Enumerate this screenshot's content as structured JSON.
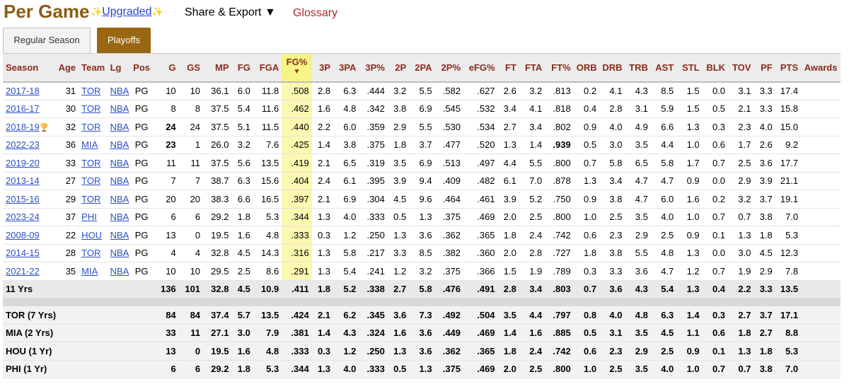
{
  "header": {
    "title": "Per Game",
    "upgraded_label": "Upgraded",
    "share_label": "Share & Export ▼",
    "glossary_label": "Glossary"
  },
  "tabs": [
    {
      "label": "Regular Season"
    },
    {
      "label": "Playoffs"
    }
  ],
  "columns": [
    "Season",
    "Age",
    "Team",
    "Lg",
    "Pos",
    "G",
    "GS",
    "MP",
    "FG",
    "FGA",
    "FG%",
    "3P",
    "3PA",
    "3P%",
    "2P",
    "2PA",
    "2P%",
    "eFG%",
    "FT",
    "FTA",
    "FT%",
    "ORB",
    "DRB",
    "TRB",
    "AST",
    "STL",
    "BLK",
    "TOV",
    "PF",
    "PTS",
    "Awards"
  ],
  "sort_indicator": "▼",
  "rows": [
    [
      "2017-18",
      "31",
      "TOR",
      "NBA",
      "PG",
      "10",
      "10",
      "36.1",
      "6.0",
      "11.8",
      ".508",
      "2.8",
      "6.3",
      ".444",
      "3.2",
      "5.5",
      ".582",
      ".627",
      "2.6",
      "3.2",
      ".813",
      "0.2",
      "4.1",
      "4.3",
      "8.5",
      "1.5",
      "0.0",
      "3.1",
      "3.3",
      "17.4",
      ""
    ],
    [
      "2016-17",
      "30",
      "TOR",
      "NBA",
      "PG",
      "8",
      "8",
      "37.5",
      "5.4",
      "11.6",
      ".462",
      "1.6",
      "4.8",
      ".342",
      "3.8",
      "6.9",
      ".545",
      ".532",
      "3.4",
      "4.1",
      ".818",
      "0.4",
      "2.8",
      "3.1",
      "5.9",
      "1.5",
      "0.5",
      "2.1",
      "3.3",
      "15.8",
      ""
    ],
    [
      "2018-19",
      "32",
      "TOR",
      "NBA",
      "PG",
      "24",
      "24",
      "37.5",
      "5.1",
      "11.5",
      ".440",
      "2.2",
      "6.0",
      ".359",
      "2.9",
      "5.5",
      ".530",
      ".534",
      "2.7",
      "3.4",
      ".802",
      "0.9",
      "4.0",
      "4.9",
      "6.6",
      "1.3",
      "0.3",
      "2.3",
      "4.0",
      "15.0",
      ""
    ],
    [
      "2022-23",
      "36",
      "MIA",
      "NBA",
      "PG",
      "23",
      "1",
      "26.0",
      "3.2",
      "7.6",
      ".425",
      "1.4",
      "3.8",
      ".375",
      "1.8",
      "3.7",
      ".477",
      ".520",
      "1.3",
      "1.4",
      ".939",
      "0.5",
      "3.0",
      "3.5",
      "4.4",
      "1.0",
      "0.6",
      "1.7",
      "2.6",
      "9.2",
      ""
    ],
    [
      "2019-20",
      "33",
      "TOR",
      "NBA",
      "PG",
      "11",
      "11",
      "37.5",
      "5.6",
      "13.5",
      ".419",
      "2.1",
      "6.5",
      ".319",
      "3.5",
      "6.9",
      ".513",
      ".497",
      "4.4",
      "5.5",
      ".800",
      "0.7",
      "5.8",
      "6.5",
      "5.8",
      "1.7",
      "0.7",
      "2.5",
      "3.6",
      "17.7",
      ""
    ],
    [
      "2013-14",
      "27",
      "TOR",
      "NBA",
      "PG",
      "7",
      "7",
      "38.7",
      "6.3",
      "15.6",
      ".404",
      "2.4",
      "6.1",
      ".395",
      "3.9",
      "9.4",
      ".409",
      ".482",
      "6.1",
      "7.0",
      ".878",
      "1.3",
      "3.4",
      "4.7",
      "4.7",
      "0.9",
      "0.0",
      "2.9",
      "3.9",
      "21.1",
      ""
    ],
    [
      "2015-16",
      "29",
      "TOR",
      "NBA",
      "PG",
      "20",
      "20",
      "38.3",
      "6.6",
      "16.5",
      ".397",
      "2.1",
      "6.9",
      ".304",
      "4.5",
      "9.6",
      ".464",
      ".461",
      "3.9",
      "5.2",
      ".750",
      "0.9",
      "3.8",
      "4.7",
      "6.0",
      "1.6",
      "0.2",
      "3.2",
      "3.7",
      "19.1",
      ""
    ],
    [
      "2023-24",
      "37",
      "PHI",
      "NBA",
      "PG",
      "6",
      "6",
      "29.2",
      "1.8",
      "5.3",
      ".344",
      "1.3",
      "4.0",
      ".333",
      "0.5",
      "1.3",
      ".375",
      ".469",
      "2.0",
      "2.5",
      ".800",
      "1.0",
      "2.5",
      "3.5",
      "4.0",
      "1.0",
      "0.7",
      "0.7",
      "3.8",
      "7.0",
      ""
    ],
    [
      "2008-09",
      "22",
      "HOU",
      "NBA",
      "PG",
      "13",
      "0",
      "19.5",
      "1.6",
      "4.8",
      ".333",
      "0.3",
      "1.2",
      ".250",
      "1.3",
      "3.6",
      ".362",
      ".365",
      "1.8",
      "2.4",
      ".742",
      "0.6",
      "2.3",
      "2.9",
      "2.5",
      "0.9",
      "0.1",
      "1.3",
      "1.8",
      "5.3",
      ""
    ],
    [
      "2014-15",
      "28",
      "TOR",
      "NBA",
      "PG",
      "4",
      "4",
      "32.8",
      "4.5",
      "14.3",
      ".316",
      "1.3",
      "5.8",
      ".217",
      "3.3",
      "8.5",
      ".382",
      ".360",
      "2.0",
      "2.8",
      ".727",
      "1.8",
      "3.8",
      "5.5",
      "4.8",
      "1.3",
      "0.0",
      "3.0",
      "4.5",
      "12.3",
      ""
    ],
    [
      "2021-22",
      "35",
      "MIA",
      "NBA",
      "PG",
      "10",
      "10",
      "29.5",
      "2.5",
      "8.6",
      ".291",
      "1.3",
      "5.4",
      ".241",
      "1.2",
      "3.2",
      ".375",
      ".366",
      "1.5",
      "1.9",
      ".789",
      "0.3",
      "3.3",
      "3.6",
      "4.7",
      "1.2",
      "0.7",
      "1.9",
      "2.9",
      "7.8",
      ""
    ]
  ],
  "bold_cells": [
    [
      2,
      5
    ],
    [
      3,
      5
    ],
    [
      3,
      20
    ]
  ],
  "trophy_row": 2,
  "trophy_glyph": "🏆",
  "total": [
    "11 Yrs",
    "",
    "",
    "",
    "",
    "136",
    "101",
    "32.8",
    "4.5",
    "10.9",
    ".411",
    "1.8",
    "5.2",
    ".338",
    "2.7",
    "5.8",
    ".476",
    ".491",
    "2.8",
    "3.4",
    ".803",
    "0.7",
    "3.6",
    "4.3",
    "5.4",
    "1.3",
    "0.4",
    "2.2",
    "3.3",
    "13.5",
    ""
  ],
  "teams": [
    [
      "TOR (7 Yrs)",
      "",
      "",
      "",
      "",
      "84",
      "84",
      "37.4",
      "5.7",
      "13.5",
      ".424",
      "2.1",
      "6.2",
      ".345",
      "3.6",
      "7.3",
      ".492",
      ".504",
      "3.5",
      "4.4",
      ".797",
      "0.8",
      "4.0",
      "4.8",
      "6.3",
      "1.4",
      "0.3",
      "2.7",
      "3.7",
      "17.1",
      ""
    ],
    [
      "MIA (2 Yrs)",
      "",
      "",
      "",
      "",
      "33",
      "11",
      "27.1",
      "3.0",
      "7.9",
      ".381",
      "1.4",
      "4.3",
      ".324",
      "1.6",
      "3.6",
      ".449",
      ".469",
      "1.4",
      "1.6",
      ".885",
      "0.5",
      "3.1",
      "3.5",
      "4.5",
      "1.1",
      "0.6",
      "1.8",
      "2.7",
      "8.8",
      ""
    ],
    [
      "HOU (1 Yr)",
      "",
      "",
      "",
      "",
      "13",
      "0",
      "19.5",
      "1.6",
      "4.8",
      ".333",
      "0.3",
      "1.2",
      ".250",
      "1.3",
      "3.6",
      ".362",
      ".365",
      "1.8",
      "2.4",
      ".742",
      "0.6",
      "2.3",
      "2.9",
      "2.5",
      "0.9",
      "0.1",
      "1.3",
      "1.8",
      "5.3",
      ""
    ],
    [
      "PHI (1 Yr)",
      "",
      "",
      "",
      "",
      "6",
      "6",
      "29.2",
      "1.8",
      "5.3",
      ".344",
      "1.3",
      "4.0",
      ".333",
      "0.5",
      "1.3",
      ".375",
      ".469",
      "2.0",
      "2.5",
      ".800",
      "1.0",
      "2.5",
      "3.5",
      "4.0",
      "1.0",
      "0.7",
      "0.7",
      "3.8",
      "7.0",
      ""
    ]
  ],
  "colors": {
    "title": "#8b5c12",
    "header_text": "#8b2b1a",
    "link": "#2b4fc7",
    "sorted_column": "#fbf8b0",
    "active_tab": "#996611"
  }
}
